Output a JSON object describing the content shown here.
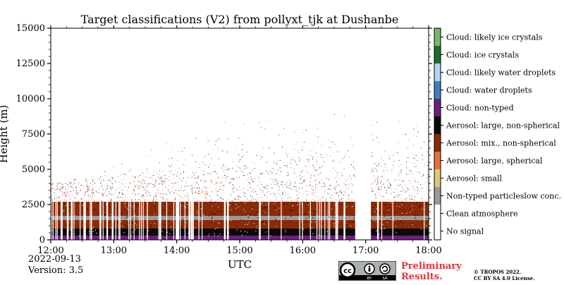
{
  "title": "Target classifications (V2) from pollyxt_tjk at Dushanbe",
  "footer": {
    "date": "2022-09-13",
    "version": "Version: 3.5",
    "preliminary_line1": "Preliminary",
    "preliminary_line2": "Results.",
    "copyright_line1": "© TROPOS 2022.",
    "copyright_line2": "CC BY SA 4.0 License.",
    "license_badge_text": [
      "BY",
      "SA"
    ]
  },
  "chart_data": {
    "type": "heatmap",
    "title": "Target classifications (V2) from pollyxt_tjk at Dushanbe",
    "xlabel": "UTC",
    "ylabel": "Height (m)",
    "xlim": [
      "12:00",
      "18:00"
    ],
    "ylim": [
      0,
      15000
    ],
    "xticks": [
      "12:00",
      "13:00",
      "14:00",
      "15:00",
      "16:00",
      "17:00",
      "18:00"
    ],
    "yticks": [
      0,
      2500,
      5000,
      7500,
      10000,
      12500,
      15000
    ],
    "classes": [
      {
        "label": "No signal",
        "color": "#ffffff"
      },
      {
        "label": "Clean atmosphere",
        "color": "#ffffff"
      },
      {
        "label": "Non-typed particleslow conc.",
        "color": "#9a9a9a"
      },
      {
        "label": "Aerosol: small",
        "color": "#dcc878"
      },
      {
        "label": "Aerosol: large, spherical",
        "color": "#e8703a"
      },
      {
        "label": "Aerosol: mix., non-spherical",
        "color": "#8c2a06"
      },
      {
        "label": "Aerosol: large, non-spherical",
        "color": "#0a0a0a"
      },
      {
        "label": "Cloud: non-typed",
        "color": "#6e1f7e"
      },
      {
        "label": "Cloud: water droplets",
        "color": "#3f7fc0"
      },
      {
        "label": "Cloud: likely water droplets",
        "color": "#b4d4f0"
      },
      {
        "label": "Cloud: ice crystals",
        "color": "#1a6e2e"
      },
      {
        "label": "Cloud: likely ice crystals",
        "color": "#7ab468"
      }
    ],
    "layers": [
      {
        "class": "Aerosol: large, non-spherical",
        "from_m": 0,
        "to_m": 800
      },
      {
        "class": "Aerosol: mix., non-spherical",
        "from_m": 800,
        "to_m": 1400
      },
      {
        "class": "Non-typed particleslow conc.",
        "from_m": 1400,
        "to_m": 1700
      },
      {
        "class": "Aerosol: mix., non-spherical",
        "from_m": 1700,
        "to_m": 2700
      },
      {
        "class": "Cloud: non-typed",
        "from_m": 0,
        "to_m": 300
      }
    ],
    "no_signal_gap": [
      "16:50",
      "17:05"
    ]
  }
}
